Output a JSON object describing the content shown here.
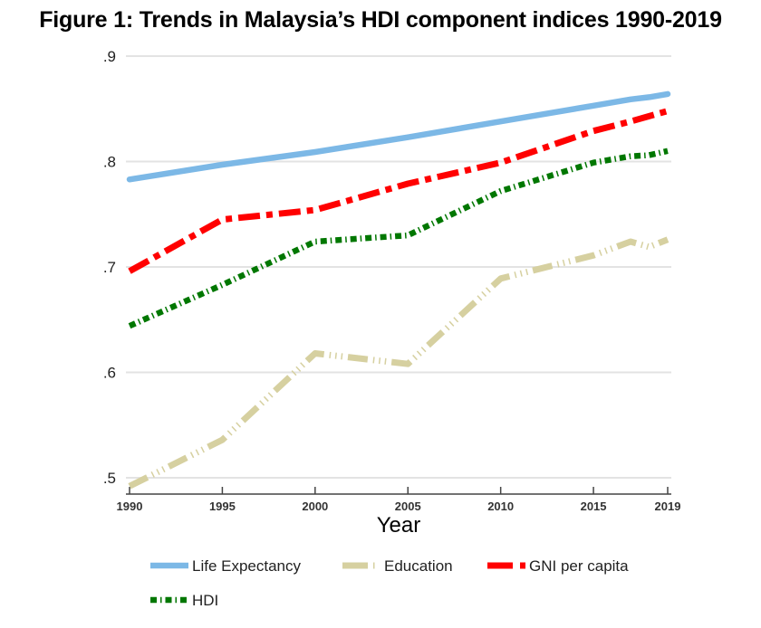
{
  "title": "Figure 1: Trends in Malaysia’s HDI component indices 1990-2019",
  "chart_data": {
    "type": "line",
    "title": "Figure 1: Trends in Malaysia’s HDI component indices 1990-2019",
    "xlabel": "Year",
    "ylabel": "",
    "x": [
      1990,
      1995,
      2000,
      2005,
      2010,
      2015,
      2017,
      2018,
      2019
    ],
    "xlim": [
      1990,
      2019
    ],
    "ylim": [
      0.5,
      0.9
    ],
    "x_ticks": [
      1990,
      1995,
      2000,
      2005,
      2010,
      2015,
      2019
    ],
    "x_tick_labels": [
      "1990",
      "1995",
      "2000",
      "2005",
      "2010",
      "2015",
      "2019"
    ],
    "y_ticks": [
      0.5,
      0.6,
      0.7,
      0.8,
      0.9
    ],
    "y_tick_labels": [
      ".5",
      ".6",
      ".7",
      ".8",
      ".9"
    ],
    "grid": "horizontal",
    "legend_position": "bottom",
    "series": [
      {
        "name": "Life Expectancy",
        "color": "#7cb8e6",
        "style": "solid",
        "values": [
          0.783,
          0.797,
          0.809,
          0.823,
          0.838,
          0.853,
          0.859,
          0.861,
          0.864
        ]
      },
      {
        "name": "Education",
        "color": "#d6d0a0",
        "style": "dash-dot-dot",
        "values": [
          0.492,
          0.536,
          0.618,
          0.608,
          0.689,
          0.711,
          0.724,
          0.719,
          0.726
        ]
      },
      {
        "name": "GNI per capita",
        "color": "#ff0000",
        "style": "dash-dot",
        "values": [
          0.696,
          0.745,
          0.754,
          0.779,
          0.799,
          0.829,
          0.838,
          0.843,
          0.848
        ]
      },
      {
        "name": "HDI",
        "color": "#007700",
        "style": "dotted",
        "values": [
          0.644,
          0.683,
          0.724,
          0.73,
          0.772,
          0.799,
          0.805,
          0.806,
          0.81
        ]
      }
    ]
  }
}
